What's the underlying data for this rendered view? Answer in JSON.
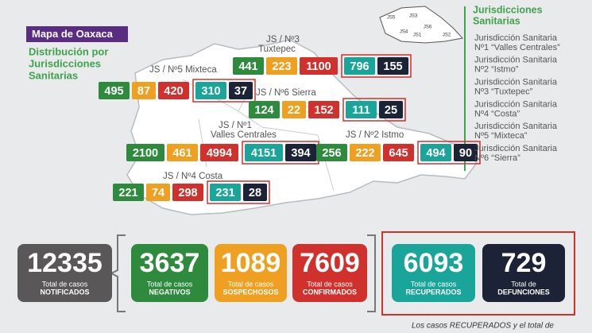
{
  "header": {
    "title": "Mapa de Oaxaca",
    "subtitle": [
      "Distribución por",
      "Jurisdicciones",
      "Sanitarias"
    ]
  },
  "regions": [
    {
      "label": [
        "JS / Nº3",
        "Tuxtepec"
      ],
      "values": [
        441,
        223,
        1100,
        796,
        155
      ]
    },
    {
      "label": [
        "JS / Nº5 Mixteca"
      ],
      "values": [
        495,
        87,
        420,
        310,
        37
      ]
    },
    {
      "label": [
        "JS / Nº6 Sierra"
      ],
      "values": [
        124,
        22,
        152,
        111,
        25
      ]
    },
    {
      "label": [
        "JS / Nº1",
        "Valles Centrales"
      ],
      "values": [
        2100,
        461,
        4994,
        4151,
        394
      ]
    },
    {
      "label": [
        "JS / Nº2 Istmo"
      ],
      "values": [
        256,
        222,
        645,
        494,
        90
      ]
    },
    {
      "label": [
        "JS / Nº4 Costa"
      ],
      "values": [
        221,
        74,
        298,
        231,
        28
      ]
    }
  ],
  "minimap": [
    "JS5",
    "JS3",
    "JS6",
    "JS1",
    "JS2",
    "JS4"
  ],
  "legend": {
    "title": [
      "Jurisdicciones",
      "Sanitarias"
    ],
    "items": [
      [
        "Jurisdicción Sanitaria",
        "Nº1 “Valles Centrales”"
      ],
      [
        "Jurisdicción Sanitaria",
        "Nº2 “Istmo”"
      ],
      [
        "Jurisdicción Sanitaria",
        "Nº3 “Tuxtepec”"
      ],
      [
        "Jurisdicción Sanitaria",
        "Nº4 “Costa”"
      ],
      [
        "Jurisdicción Sanitaria",
        "Nº5 “Mixteca”"
      ],
      [
        "Jurisdicción Sanitaria",
        "Nº6 “Sierra”"
      ]
    ]
  },
  "totals": [
    {
      "value": 12335,
      "label": "Total de casos",
      "sublabel": "NOTIFICADOS"
    },
    {
      "value": 3637,
      "label": "Total de casos",
      "sublabel": "NEGATIVOS"
    },
    {
      "value": 1089,
      "label": "Total de casos",
      "sublabel": "SOSPECHOSOS"
    },
    {
      "value": 7609,
      "label": "Total de casos",
      "sublabel": "CONFIRMADOS"
    },
    {
      "value": 6093,
      "label": "Total de casos",
      "sublabel": "RECUPERADOS"
    },
    {
      "value": 729,
      "label": "Total de",
      "sublabel": "DEFUNCIONES"
    }
  ],
  "footer": "Los casos RECUPERADOS y el total de"
}
